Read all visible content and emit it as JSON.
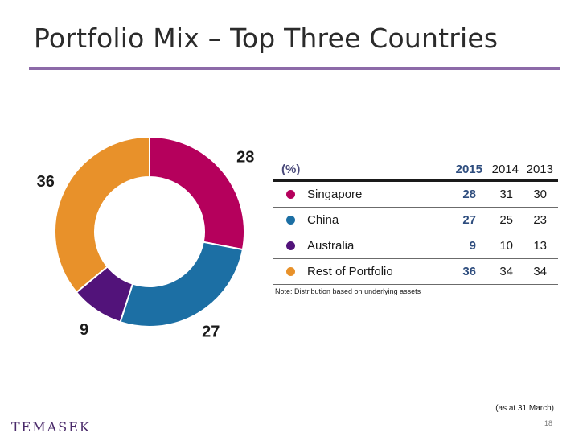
{
  "slide": {
    "title": "Portfolio Mix – Top Three Countries",
    "note": "Note: Distribution based on underlying assets",
    "as_at": "(as at 31 March)",
    "page_number": "18",
    "logo_text": "TEMASEK"
  },
  "colors": {
    "title_rule": "#8c6aa8",
    "Singapore": "#b5005c",
    "China": "#1c6fa4",
    "Australia": "#52137a",
    "Rest of Portfolio": "#e8912a"
  },
  "chart_data": {
    "type": "pie",
    "style": "donut",
    "categories": [
      "Singapore",
      "China",
      "Australia",
      "Rest of Portfolio"
    ],
    "values": [
      28,
      27,
      9,
      36
    ],
    "unit": "%",
    "data_labels": [
      "28",
      "27",
      "9",
      "36"
    ],
    "colors": [
      "#b5005c",
      "#1c6fa4",
      "#52137a",
      "#e8912a"
    ]
  },
  "table": {
    "unit_label": "(%)",
    "columns": [
      "2015",
      "2014",
      "2013"
    ],
    "rows": [
      {
        "label": "Singapore",
        "color": "#b5005c",
        "values": [
          "28",
          "31",
          "30"
        ]
      },
      {
        "label": "China",
        "color": "#1c6fa4",
        "values": [
          "27",
          "25",
          "23"
        ]
      },
      {
        "label": "Australia",
        "color": "#52137a",
        "values": [
          "9",
          "10",
          "13"
        ]
      },
      {
        "label": "Rest of Portfolio",
        "color": "#e8912a",
        "values": [
          "36",
          "34",
          "34"
        ]
      }
    ]
  }
}
